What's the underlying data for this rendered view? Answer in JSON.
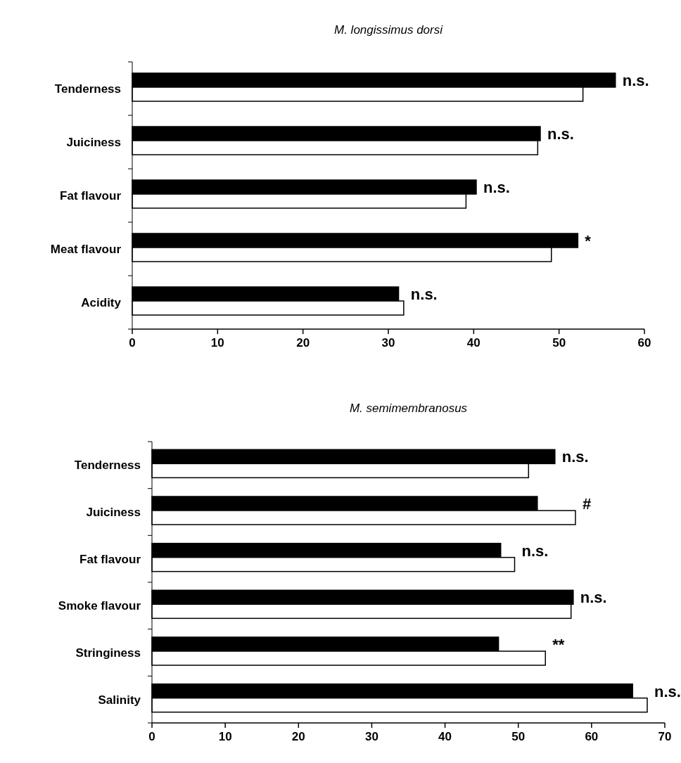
{
  "chart_data": [
    {
      "type": "bar",
      "orientation": "horizontal",
      "title": "M. longissimus dorsi",
      "categories": [
        "Tenderness",
        "Juiciness",
        "Fat flavour",
        "Meat flavour",
        "Acidity"
      ],
      "series": [
        {
          "color": "#000000",
          "values": [
            56.6,
            47.8,
            40.3,
            52.2,
            31.2
          ]
        },
        {
          "color": "#ffffff",
          "values": [
            52.8,
            47.5,
            39.1,
            49.1,
            31.8
          ]
        }
      ],
      "xlim": [
        0,
        60
      ],
      "xticks": [
        0,
        10,
        20,
        30,
        40,
        50,
        60
      ],
      "grid": false,
      "annotations": [
        "n.s.",
        "n.s.",
        "n.s.",
        "*",
        "n.s."
      ]
    },
    {
      "type": "bar",
      "orientation": "horizontal",
      "title": "M. semimembranosus",
      "categories": [
        "Tenderness",
        "Juiciness",
        "Fat flavour",
        "Smoke flavour",
        "Stringiness",
        "Salinity"
      ],
      "series": [
        {
          "color": "#000000",
          "values": [
            55.0,
            52.6,
            47.6,
            57.5,
            47.3,
            65.6
          ]
        },
        {
          "color": "#ffffff",
          "values": [
            51.4,
            57.8,
            49.5,
            57.2,
            53.7,
            67.6
          ]
        }
      ],
      "xlim": [
        0,
        70
      ],
      "xticks": [
        0,
        10,
        20,
        30,
        40,
        50,
        60,
        70
      ],
      "grid": false,
      "annotations": [
        "n.s.",
        "#",
        "n.s.",
        "n.s.",
        "**",
        "n.s."
      ]
    }
  ]
}
